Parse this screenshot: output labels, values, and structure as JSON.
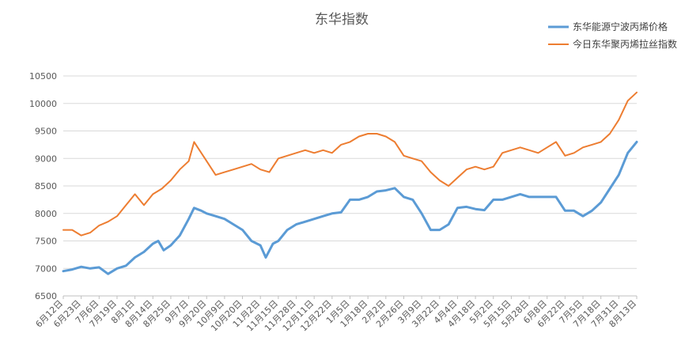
{
  "chart_data": {
    "type": "line",
    "title": "东华指数",
    "xlabel": "",
    "ylabel": "",
    "ylim": [
      6500,
      10500
    ],
    "yticks": [
      6500,
      7000,
      7500,
      8000,
      8500,
      9000,
      9500,
      10000,
      10500
    ],
    "categories": [
      "6月12日",
      "6月23日",
      "7月6日",
      "7月19日",
      "8月1日",
      "8月14日",
      "8月25日",
      "9月7日",
      "9月20日",
      "10月9日",
      "10月20日",
      "11月2日",
      "11月15日",
      "11月28日",
      "12月11日",
      "12月22日",
      "1月5日",
      "1月18日",
      "2月2日",
      "2月26日",
      "3月9日",
      "3月22日",
      "4月4日",
      "4月18日",
      "5月2日",
      "5月15日",
      "5月28日",
      "6月8日",
      "6月22日",
      "7月5日",
      "7月18日",
      "7月31日",
      "8月13日"
    ],
    "grid": true,
    "legend_position": "top-right",
    "series": [
      {
        "name": "东华能源宁波丙烯价格",
        "color": "#5b9bd5",
        "points": [
          [
            0,
            6950
          ],
          [
            0.5,
            6980
          ],
          [
            1,
            7030
          ],
          [
            1.5,
            7000
          ],
          [
            2,
            7020
          ],
          [
            2.5,
            6900
          ],
          [
            3,
            7000
          ],
          [
            3.5,
            7050
          ],
          [
            4,
            7200
          ],
          [
            4.5,
            7300
          ],
          [
            5,
            7450
          ],
          [
            5.3,
            7500
          ],
          [
            5.6,
            7330
          ],
          [
            6,
            7420
          ],
          [
            6.5,
            7600
          ],
          [
            7,
            7900
          ],
          [
            7.3,
            8100
          ],
          [
            7.7,
            8050
          ],
          [
            8,
            8000
          ],
          [
            8.5,
            7950
          ],
          [
            9,
            7900
          ],
          [
            9.5,
            7800
          ],
          [
            10,
            7700
          ],
          [
            10.5,
            7500
          ],
          [
            11,
            7420
          ],
          [
            11.3,
            7200
          ],
          [
            11.7,
            7450
          ],
          [
            12,
            7500
          ],
          [
            12.5,
            7700
          ],
          [
            13,
            7800
          ],
          [
            13.5,
            7850
          ],
          [
            14,
            7900
          ],
          [
            14.5,
            7950
          ],
          [
            15,
            8000
          ],
          [
            15.5,
            8020
          ],
          [
            16,
            8250
          ],
          [
            16.5,
            8250
          ],
          [
            17,
            8300
          ],
          [
            17.5,
            8400
          ],
          [
            18,
            8420
          ],
          [
            18.5,
            8460
          ],
          [
            19,
            8300
          ],
          [
            19.5,
            8250
          ],
          [
            20,
            8000
          ],
          [
            20.5,
            7700
          ],
          [
            21,
            7700
          ],
          [
            21.5,
            7800
          ],
          [
            22,
            8100
          ],
          [
            22.5,
            8120
          ],
          [
            23,
            8080
          ],
          [
            23.5,
            8060
          ],
          [
            24,
            8250
          ],
          [
            24.5,
            8250
          ],
          [
            25,
            8300
          ],
          [
            25.5,
            8350
          ],
          [
            26,
            8300
          ],
          [
            26.5,
            8300
          ],
          [
            27,
            8300
          ],
          [
            27.5,
            8300
          ],
          [
            28,
            8050
          ],
          [
            28.5,
            8050
          ],
          [
            29,
            7950
          ],
          [
            29.5,
            8050
          ],
          [
            30,
            8200
          ],
          [
            30.5,
            8450
          ],
          [
            31,
            8700
          ],
          [
            31.5,
            9100
          ],
          [
            32,
            9300
          ]
        ]
      },
      {
        "name": "今日东华聚丙烯拉丝指数",
        "color": "#ed7d31",
        "points": [
          [
            0,
            7700
          ],
          [
            0.5,
            7700
          ],
          [
            1,
            7600
          ],
          [
            1.5,
            7650
          ],
          [
            2,
            7780
          ],
          [
            2.5,
            7850
          ],
          [
            3,
            7950
          ],
          [
            3.5,
            8150
          ],
          [
            4,
            8350
          ],
          [
            4.5,
            8150
          ],
          [
            5,
            8350
          ],
          [
            5.5,
            8450
          ],
          [
            6,
            8600
          ],
          [
            6.5,
            8800
          ],
          [
            7,
            8950
          ],
          [
            7.3,
            9300
          ],
          [
            7.6,
            9150
          ],
          [
            8,
            8950
          ],
          [
            8.5,
            8700
          ],
          [
            9,
            8750
          ],
          [
            9.5,
            8800
          ],
          [
            10,
            8850
          ],
          [
            10.5,
            8900
          ],
          [
            11,
            8800
          ],
          [
            11.5,
            8750
          ],
          [
            12,
            9000
          ],
          [
            12.5,
            9050
          ],
          [
            13,
            9100
          ],
          [
            13.5,
            9150
          ],
          [
            14,
            9100
          ],
          [
            14.5,
            9150
          ],
          [
            15,
            9100
          ],
          [
            15.5,
            9250
          ],
          [
            16,
            9300
          ],
          [
            16.5,
            9400
          ],
          [
            17,
            9450
          ],
          [
            17.5,
            9450
          ],
          [
            18,
            9400
          ],
          [
            18.5,
            9300
          ],
          [
            19,
            9050
          ],
          [
            19.5,
            9000
          ],
          [
            20,
            8950
          ],
          [
            20.5,
            8750
          ],
          [
            21,
            8600
          ],
          [
            21.5,
            8500
          ],
          [
            22,
            8650
          ],
          [
            22.5,
            8800
          ],
          [
            23,
            8850
          ],
          [
            23.5,
            8800
          ],
          [
            24,
            8850
          ],
          [
            24.5,
            9100
          ],
          [
            25,
            9150
          ],
          [
            25.5,
            9200
          ],
          [
            26,
            9150
          ],
          [
            26.5,
            9100
          ],
          [
            27,
            9200
          ],
          [
            27.5,
            9300
          ],
          [
            28,
            9050
          ],
          [
            28.5,
            9100
          ],
          [
            29,
            9200
          ],
          [
            29.5,
            9250
          ],
          [
            30,
            9300
          ],
          [
            30.5,
            9450
          ],
          [
            31,
            9700
          ],
          [
            31.5,
            10050
          ],
          [
            32,
            10200
          ]
        ]
      }
    ]
  }
}
